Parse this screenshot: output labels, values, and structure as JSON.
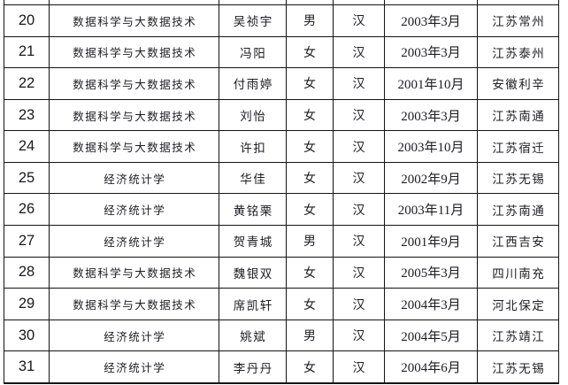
{
  "page": {
    "background_color": "#ffffff",
    "gridline_color": "#141414",
    "text_color": "#1c1c24"
  },
  "table": {
    "description_note": "student roster table, header row cut off above visible area",
    "column_keys": [
      "number",
      "major",
      "name",
      "gender",
      "ethnicity",
      "birth",
      "origin"
    ],
    "rows": [
      {
        "number": "20",
        "major": "数据科学与大数据技术",
        "name": "吴祯宇",
        "gender": "男",
        "ethnicity": "汉",
        "birth": "2003年3月",
        "origin": "江苏常州"
      },
      {
        "number": "21",
        "major": "数据科学与大数据技术",
        "name": "冯阳",
        "gender": "女",
        "ethnicity": "汉",
        "birth": "2003年3月",
        "origin": "江苏泰州"
      },
      {
        "number": "22",
        "major": "数据科学与大数据技术",
        "name": "付雨婷",
        "gender": "女",
        "ethnicity": "汉",
        "birth": "2001年10月",
        "origin": "安徽利辛"
      },
      {
        "number": "23",
        "major": "数据科学与大数据技术",
        "name": "刘怡",
        "gender": "女",
        "ethnicity": "汉",
        "birth": "2003年3月",
        "origin": "江苏南通"
      },
      {
        "number": "24",
        "major": "数据科学与大数据技术",
        "name": "许扣",
        "gender": "女",
        "ethnicity": "汉",
        "birth": "2003年10月",
        "origin": "江苏宿迁"
      },
      {
        "number": "25",
        "major": "经济统计学",
        "name": "华佳",
        "gender": "女",
        "ethnicity": "汉",
        "birth": "2002年9月",
        "origin": "江苏无锡"
      },
      {
        "number": "26",
        "major": "经济统计学",
        "name": "黄铭栗",
        "gender": "女",
        "ethnicity": "汉",
        "birth": "2003年11月",
        "origin": "江苏南通"
      },
      {
        "number": "27",
        "major": "经济统计学",
        "name": "贺青城",
        "gender": "男",
        "ethnicity": "汉",
        "birth": "2001年9月",
        "origin": "江西吉安"
      },
      {
        "number": "28",
        "major": "数据科学与大数据技术",
        "name": "魏银双",
        "gender": "女",
        "ethnicity": "汉",
        "birth": "2005年3月",
        "origin": "四川南充"
      },
      {
        "number": "29",
        "major": "数据科学与大数据技术",
        "name": "席凯轩",
        "gender": "女",
        "ethnicity": "汉",
        "birth": "2004年3月",
        "origin": "河北保定"
      },
      {
        "number": "30",
        "major": "经济统计学",
        "name": "姚斌",
        "gender": "男",
        "ethnicity": "汉",
        "birth": "2004年5月",
        "origin": "江苏靖江"
      },
      {
        "number": "31",
        "major": "经济统计学",
        "name": "李丹丹",
        "gender": "女",
        "ethnicity": "汉",
        "birth": "2004年6月",
        "origin": "江苏无锡"
      }
    ]
  }
}
